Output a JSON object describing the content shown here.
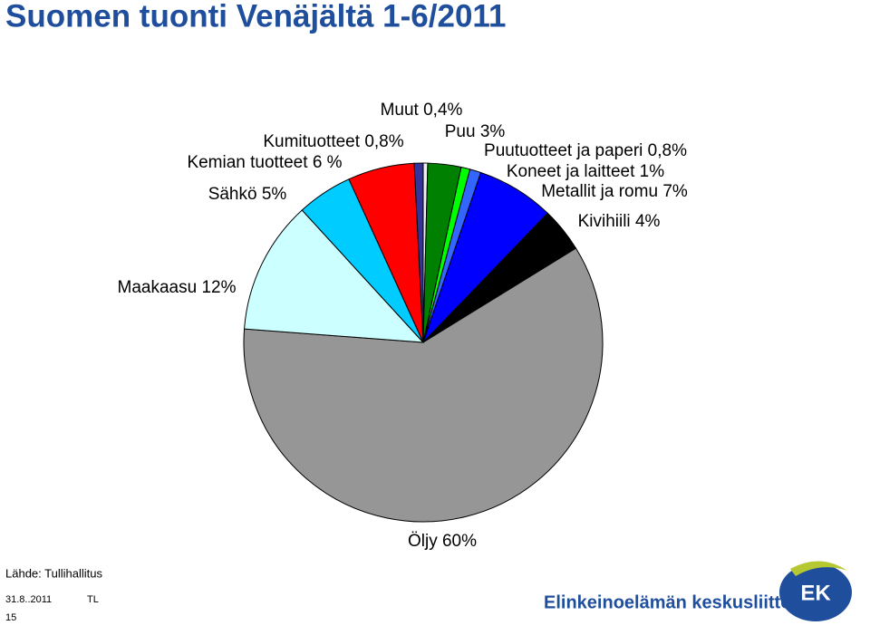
{
  "slide": {
    "title": "Suomen tuonti Venäjältä 1-6/2011",
    "source": "Lähde: Tullihallitus",
    "date": "31.8..2011",
    "author": "TL",
    "page": "15",
    "logo_text": "Elinkeinoelämän keskusliitto",
    "logo_mark": "EK"
  },
  "chart_data": {
    "type": "pie",
    "categories": [
      "Muut",
      "Puu",
      "Puutuotteet ja paperi",
      "Koneet ja laitteet",
      "Metallit ja romu",
      "Kivihiili",
      "Öljy",
      "Maakaasu",
      "Sähkö",
      "Kemian tuotteet",
      "Kumituotteet"
    ],
    "values": [
      0.4,
      3,
      0.8,
      1,
      7,
      4,
      60,
      12,
      5,
      6,
      0.8
    ],
    "value_labels": [
      "0,4%",
      "3%",
      "0,8%",
      "1%",
      "7%",
      "4%",
      "60%",
      "12%",
      "5%",
      "6 %",
      "0,8%"
    ],
    "colors": [
      "#f0f0f0",
      "#008000",
      "#00ff00",
      "#3366ff",
      "#0000ff",
      "#000000",
      "#969696",
      "#ccffff",
      "#00ccff",
      "#ff0000",
      "#333399"
    ]
  }
}
